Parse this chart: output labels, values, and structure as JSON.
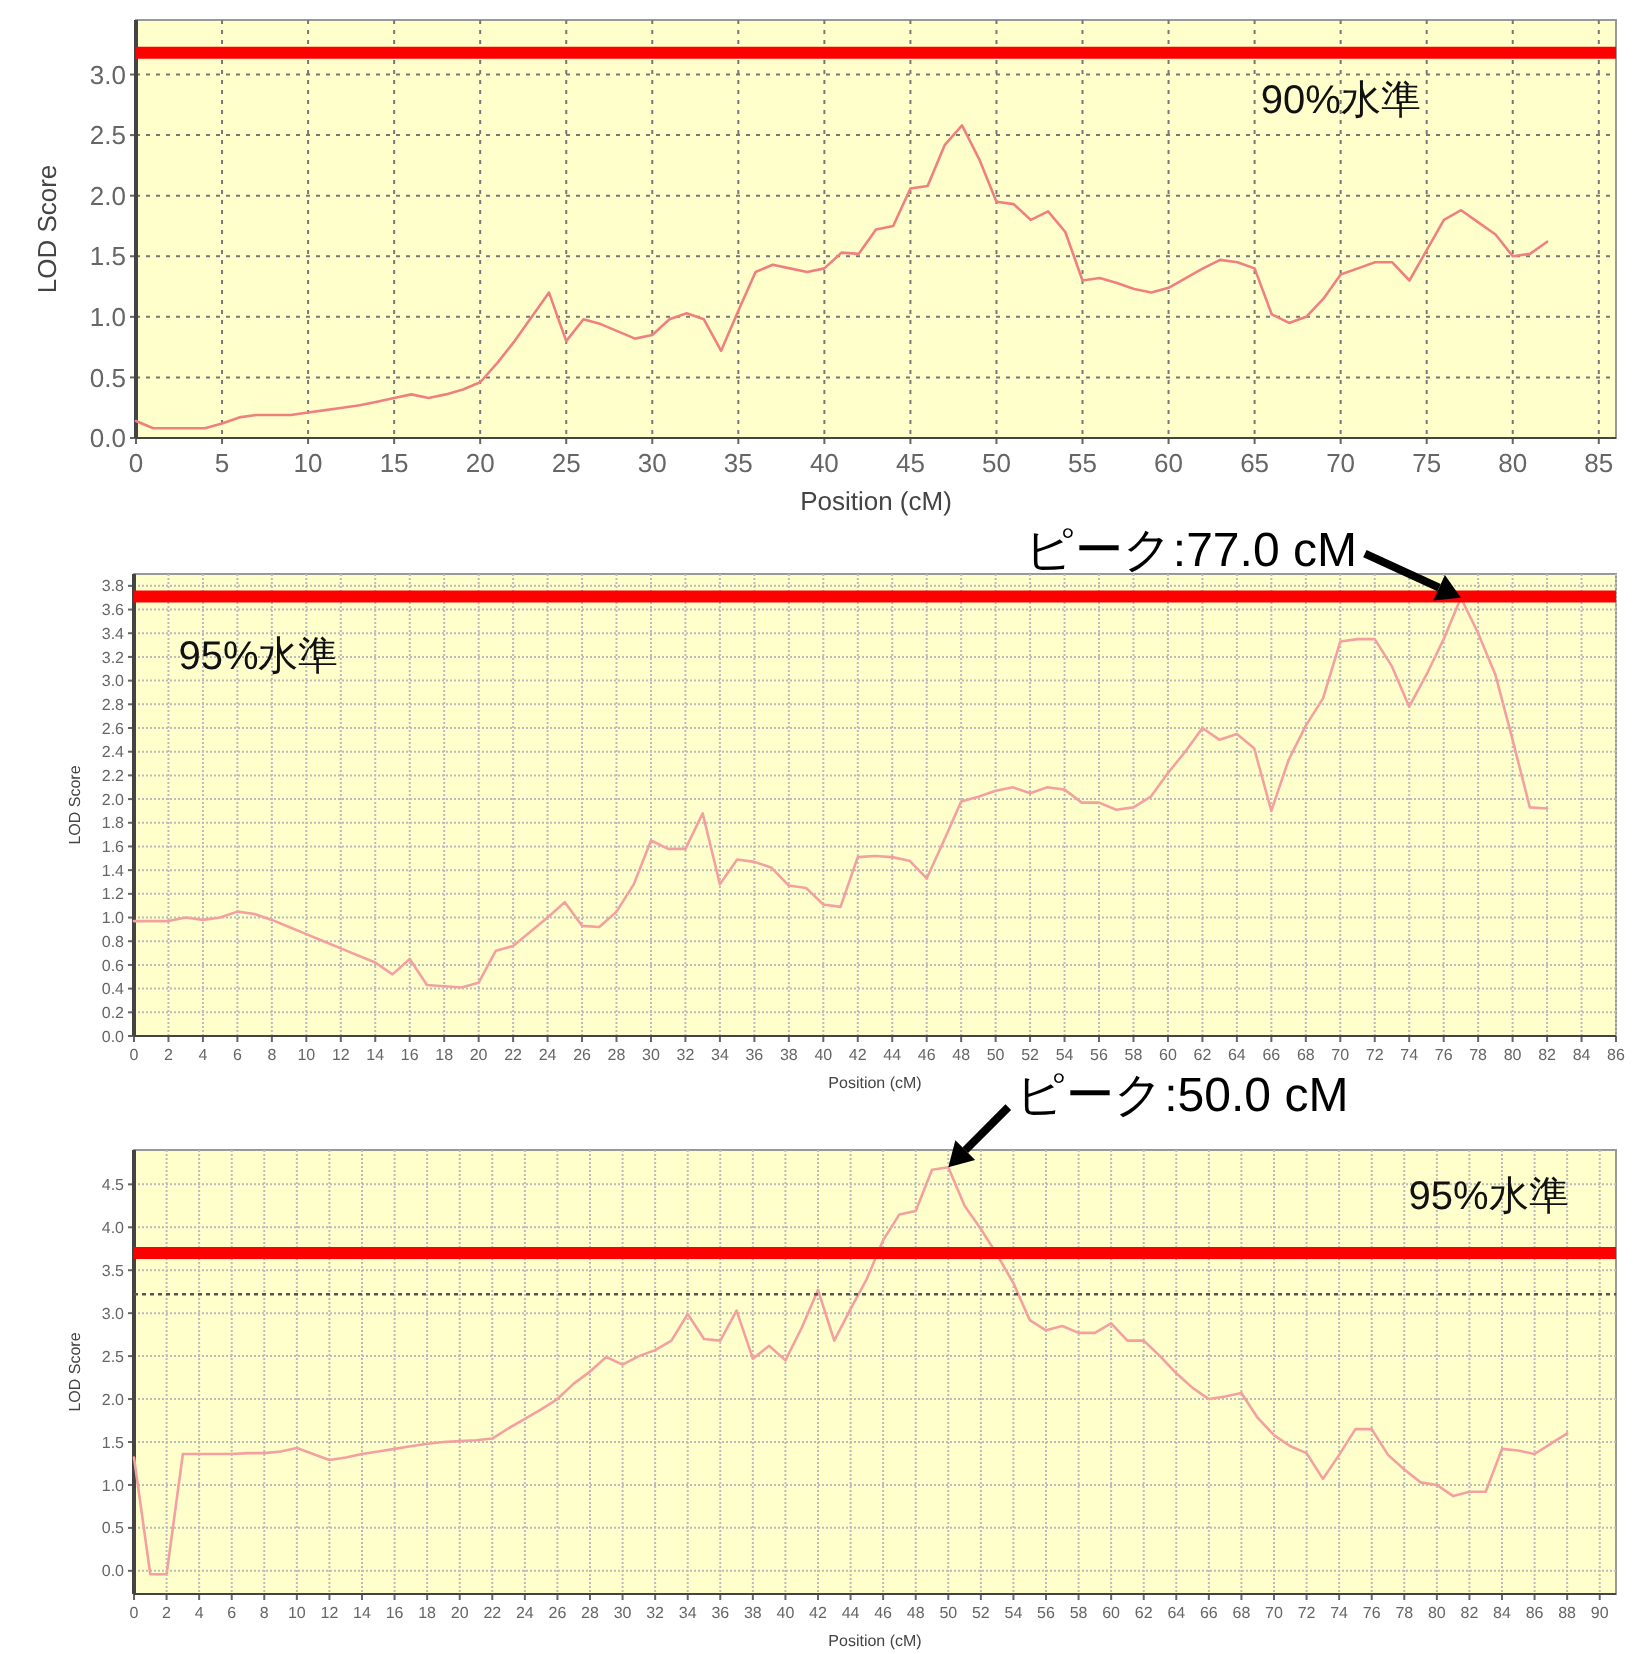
{
  "chart_data": [
    {
      "type": "line",
      "xlabel": "Position (cM)",
      "ylabel": "LOD Score",
      "xlim": [
        0,
        86
      ],
      "ylim": [
        0,
        3.45
      ],
      "grid": true,
      "xticks": [
        0,
        5,
        10,
        15,
        20,
        25,
        30,
        35,
        40,
        45,
        50,
        55,
        60,
        65,
        70,
        75,
        80,
        85
      ],
      "yticks": [
        {
          "value": 0,
          "label": "0.0"
        },
        {
          "value": 0.5,
          "label": "0.5"
        },
        {
          "value": 1,
          "label": "1.0"
        },
        {
          "value": 1.5,
          "label": "1.5"
        },
        {
          "value": 2,
          "label": "2.0"
        },
        {
          "value": 2.5,
          "label": "2.5"
        },
        {
          "value": 3,
          "label": "3.0"
        }
      ],
      "ref_lines": [
        {
          "axis": "y",
          "value": 3.18,
          "label": "90%水準",
          "color": "#ff0000"
        }
      ],
      "series": [
        {
          "color": "#f08080",
          "x": [
            0,
            1,
            2,
            3,
            4,
            5,
            6,
            7,
            8,
            9,
            10,
            11,
            12,
            13,
            14,
            15,
            16,
            17,
            18,
            19,
            20,
            21,
            22,
            23,
            24,
            25,
            26,
            27,
            28,
            29,
            30,
            31,
            32,
            33,
            34,
            35,
            36,
            37,
            38,
            39,
            40,
            41,
            42,
            43,
            44,
            45,
            46,
            47,
            48,
            49,
            50,
            51,
            52,
            53,
            54,
            55,
            56,
            57,
            58,
            59,
            60,
            61,
            62,
            63,
            64,
            65,
            66,
            67,
            68,
            69,
            70,
            71,
            72,
            73,
            74,
            75,
            76,
            77,
            78,
            79,
            80,
            81,
            82
          ],
          "values": [
            0.14,
            0.08,
            0.08,
            0.08,
            0.08,
            0.12,
            0.17,
            0.19,
            0.19,
            0.19,
            0.21,
            0.23,
            0.25,
            0.27,
            0.3,
            0.33,
            0.36,
            0.33,
            0.36,
            0.4,
            0.46,
            0.62,
            0.8,
            1.0,
            1.2,
            0.8,
            0.98,
            0.94,
            0.88,
            0.82,
            0.85,
            0.98,
            1.03,
            0.98,
            0.72,
            1.05,
            1.37,
            1.43,
            1.4,
            1.37,
            1.4,
            1.53,
            1.52,
            1.72,
            1.75,
            2.06,
            2.08,
            2.42,
            2.58,
            2.3,
            1.95,
            1.93,
            1.8,
            1.87,
            1.7,
            1.3,
            1.32,
            1.28,
            1.23,
            1.2,
            1.24,
            1.32,
            1.4,
            1.47,
            1.45,
            1.4,
            1.02,
            0.95,
            1.0,
            1.15,
            1.35,
            1.4,
            1.45,
            1.45,
            1.3,
            1.55,
            1.8,
            1.88,
            1.78,
            1.68,
            1.5,
            1.52,
            1.62
          ]
        }
      ]
    },
    {
      "type": "line",
      "xlabel": "Position (cM)",
      "ylabel": "LOD Score",
      "xlim": [
        0,
        86
      ],
      "ylim": [
        0,
        3.9
      ],
      "grid": true,
      "xticks": [
        0,
        2,
        4,
        6,
        8,
        10,
        12,
        14,
        16,
        18,
        20,
        22,
        24,
        26,
        28,
        30,
        32,
        34,
        36,
        38,
        40,
        42,
        44,
        46,
        48,
        50,
        52,
        54,
        56,
        58,
        60,
        62,
        64,
        66,
        68,
        70,
        72,
        74,
        76,
        78,
        80,
        82,
        84,
        86
      ],
      "yticks": [
        {
          "value": 0,
          "label": "0.0"
        },
        {
          "value": 0.2,
          "label": "0.2"
        },
        {
          "value": 0.4,
          "label": "0.4"
        },
        {
          "value": 0.6,
          "label": "0.6"
        },
        {
          "value": 0.8,
          "label": "0.8"
        },
        {
          "value": 1,
          "label": "1.0"
        },
        {
          "value": 1.2,
          "label": "1.2"
        },
        {
          "value": 1.4,
          "label": "1.4"
        },
        {
          "value": 1.6,
          "label": "1.6"
        },
        {
          "value": 1.8,
          "label": "1.8"
        },
        {
          "value": 2,
          "label": "2.0"
        },
        {
          "value": 2.2,
          "label": "2.2"
        },
        {
          "value": 2.4,
          "label": "2.4"
        },
        {
          "value": 2.6,
          "label": "2.6"
        },
        {
          "value": 2.8,
          "label": "2.8"
        },
        {
          "value": 3,
          "label": "3.0"
        },
        {
          "value": 3.2,
          "label": "3.2"
        },
        {
          "value": 3.4,
          "label": "3.4"
        },
        {
          "value": 3.6,
          "label": "3.6"
        },
        {
          "value": 3.8,
          "label": "3.8"
        }
      ],
      "ref_lines": [
        {
          "axis": "y",
          "value": 3.71,
          "label": "95%水準",
          "color": "#ff0000"
        }
      ],
      "annotations": [
        {
          "text": "ピーク:77.0 cM",
          "x": 77,
          "y": 3.7
        }
      ],
      "series": [
        {
          "color": "#f4a0a0",
          "x": [
            0,
            1,
            2,
            3,
            4,
            5,
            6,
            7,
            8,
            9,
            10,
            11,
            12,
            13,
            14,
            15,
            16,
            17,
            18,
            19,
            20,
            21,
            22,
            23,
            24,
            25,
            26,
            27,
            28,
            29,
            30,
            31,
            32,
            33,
            34,
            35,
            36,
            37,
            38,
            39,
            40,
            41,
            42,
            43,
            44,
            45,
            46,
            47,
            48,
            49,
            50,
            51,
            52,
            53,
            54,
            55,
            56,
            57,
            58,
            59,
            60,
            61,
            62,
            63,
            64,
            65,
            66,
            67,
            68,
            69,
            70,
            71,
            72,
            73,
            74,
            75,
            76,
            77,
            78,
            79,
            80,
            81,
            82
          ],
          "values": [
            0.97,
            0.97,
            0.97,
            1.0,
            0.98,
            1.0,
            1.05,
            1.03,
            0.98,
            0.92,
            0.86,
            0.8,
            0.74,
            0.68,
            0.62,
            0.52,
            0.65,
            0.43,
            0.42,
            0.41,
            0.45,
            0.72,
            0.76,
            0.88,
            1.0,
            1.13,
            0.93,
            0.92,
            1.05,
            1.28,
            1.65,
            1.58,
            1.58,
            1.88,
            1.28,
            1.49,
            1.47,
            1.42,
            1.27,
            1.25,
            1.11,
            1.09,
            1.51,
            1.52,
            1.51,
            1.48,
            1.33,
            1.65,
            1.98,
            2.02,
            2.07,
            2.1,
            2.05,
            2.1,
            2.08,
            1.97,
            1.97,
            1.91,
            1.93,
            2.02,
            2.22,
            2.4,
            2.6,
            2.5,
            2.55,
            2.43,
            1.9,
            2.33,
            2.62,
            2.85,
            3.33,
            3.35,
            3.35,
            3.12,
            2.78,
            3.05,
            3.35,
            3.7,
            3.4,
            3.05,
            2.5,
            1.93,
            1.92
          ]
        }
      ]
    },
    {
      "type": "line",
      "xlabel": "Position (cM)",
      "ylabel": "LOD Score",
      "xlim": [
        0,
        91
      ],
      "ylim": [
        -0.27,
        4.9
      ],
      "grid": true,
      "xticks": [
        0,
        2,
        4,
        6,
        8,
        10,
        12,
        14,
        16,
        18,
        20,
        22,
        24,
        26,
        28,
        30,
        32,
        34,
        36,
        38,
        40,
        42,
        44,
        46,
        48,
        50,
        52,
        54,
        56,
        58,
        60,
        62,
        64,
        66,
        68,
        70,
        72,
        74,
        76,
        78,
        80,
        82,
        84,
        86,
        88,
        90
      ],
      "yticks": [
        {
          "value": 0,
          "label": "0.0"
        },
        {
          "value": 0.5,
          "label": "0.5"
        },
        {
          "value": 1,
          "label": "1.0"
        },
        {
          "value": 1.5,
          "label": "1.5"
        },
        {
          "value": 2,
          "label": "2.0"
        },
        {
          "value": 2.5,
          "label": "2.5"
        },
        {
          "value": 3,
          "label": "3.0"
        },
        {
          "value": 3.5,
          "label": "3.5"
        },
        {
          "value": 4,
          "label": "4.0"
        },
        {
          "value": 4.5,
          "label": "4.5"
        }
      ],
      "ref_lines": [
        {
          "axis": "y",
          "value": 3.7,
          "label": "95%水準",
          "color": "#ff0000"
        },
        {
          "axis": "y",
          "value": 3.22,
          "color": "#555555",
          "line_style": "dotted"
        }
      ],
      "annotations": [
        {
          "text": "ピーク:50.0 cM",
          "x": 50,
          "y": 4.7
        }
      ],
      "series": [
        {
          "color": "#f4a0a0",
          "x": [
            0,
            1,
            2,
            3,
            4,
            5,
            6,
            7,
            8,
            9,
            10,
            11,
            12,
            13,
            14,
            15,
            16,
            17,
            18,
            19,
            20,
            21,
            22,
            23,
            24,
            25,
            26,
            27,
            28,
            29,
            30,
            31,
            32,
            33,
            34,
            35,
            36,
            37,
            38,
            39,
            40,
            41,
            42,
            43,
            44,
            45,
            46,
            47,
            48,
            49,
            50,
            51,
            52,
            53,
            54,
            55,
            56,
            57,
            58,
            59,
            60,
            61,
            62,
            63,
            64,
            65,
            66,
            67,
            68,
            69,
            70,
            71,
            72,
            73,
            74,
            75,
            76,
            77,
            78,
            79,
            80,
            81,
            82,
            83,
            84,
            85,
            86,
            87,
            88
          ],
          "values": [
            1.32,
            -0.04,
            -0.04,
            1.36,
            1.36,
            1.36,
            1.36,
            1.37,
            1.37,
            1.39,
            1.43,
            1.36,
            1.29,
            1.32,
            1.36,
            1.39,
            1.42,
            1.45,
            1.48,
            1.5,
            1.51,
            1.52,
            1.54,
            1.66,
            1.77,
            1.88,
            2.0,
            2.18,
            2.32,
            2.49,
            2.4,
            2.5,
            2.57,
            2.68,
            2.99,
            2.7,
            2.68,
            3.03,
            2.47,
            2.62,
            2.45,
            2.83,
            3.27,
            2.68,
            3.05,
            3.4,
            3.85,
            4.15,
            4.19,
            4.67,
            4.7,
            4.25,
            3.98,
            3.68,
            3.35,
            2.92,
            2.8,
            2.85,
            2.77,
            2.77,
            2.88,
            2.68,
            2.68,
            2.5,
            2.3,
            2.13,
            2.0,
            2.03,
            2.07,
            1.78,
            1.58,
            1.45,
            1.37,
            1.07,
            1.35,
            1.65,
            1.65,
            1.35,
            1.18,
            1.03,
            1.0,
            0.87,
            0.92,
            0.92,
            1.42,
            1.4,
            1.36,
            1.48,
            1.6
          ]
        }
      ]
    }
  ]
}
